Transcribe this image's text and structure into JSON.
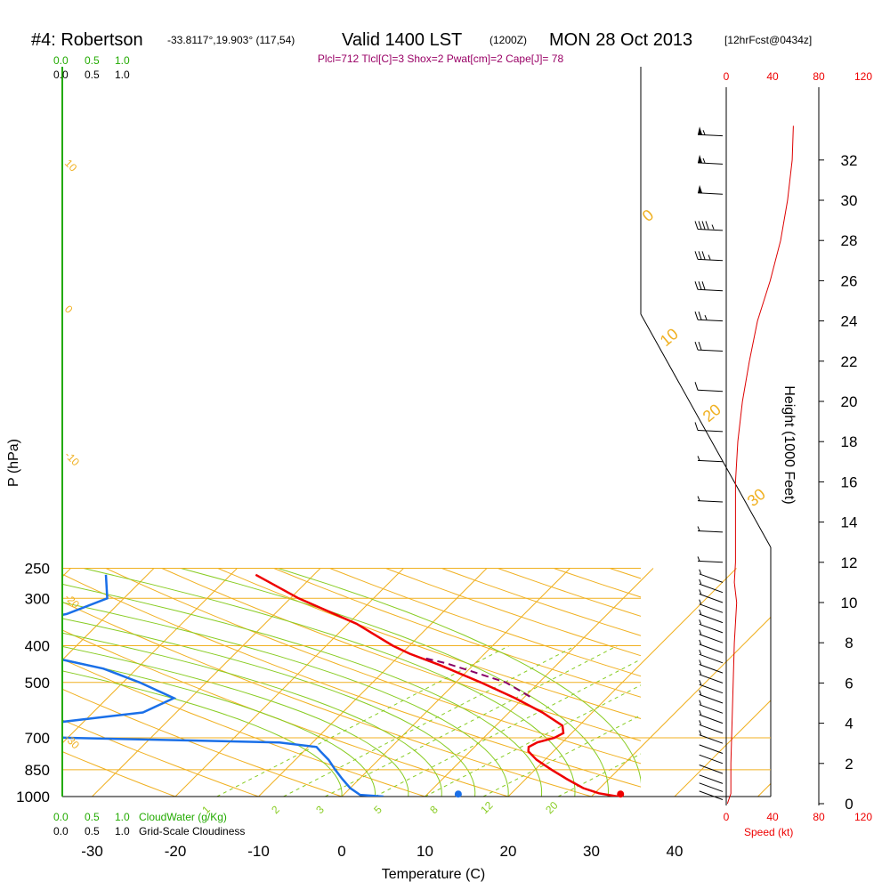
{
  "header": {
    "station": "#4: Robertson",
    "coords": "-33.8117°,19.903° (117,54)",
    "valid": "Valid 1400 LST",
    "utc": "(1200Z)",
    "date": "MON 28 Oct 2013",
    "forecast": "[12hrFcst@0434z]"
  },
  "info_line": "Plcl=712 Tlcl[C]=3 Shox=2 Pwat[cm]=2 Cape[J]= 78",
  "scales": {
    "cloudwater_ticks": [
      "0.0",
      "0.5",
      "1.0"
    ],
    "cloudiness_ticks": [
      "0.0",
      "0.5",
      "1.0"
    ],
    "cloudwater_label": "CloudWater (g/Kg)",
    "cloudiness_label": "Grid-Scale Cloudiness",
    "speed_ticks": [
      "0",
      "40",
      "80",
      "120"
    ],
    "speed_label": "Speed (kt)"
  },
  "colors": {
    "temperature": "#ee0000",
    "dewpoint": "#1a6fe8",
    "parcel": "#880066",
    "isotherm": "#f0b020",
    "mixing_ratio": "#88cc22",
    "wind_speed": "#dd0000",
    "cloud": "#22aa00"
  },
  "chart_data": {
    "type": "skew-t",
    "xlabel": "Temperature (C)",
    "ylabel": "P (hPa)",
    "y2label": "Height (1000 Feet)",
    "x_ticks": [
      -30,
      -20,
      -10,
      0,
      10,
      20,
      30,
      40
    ],
    "pressure_ticks": [
      250,
      300,
      400,
      500,
      700,
      850,
      1000
    ],
    "height_ticks": [
      0,
      2,
      4,
      6,
      8,
      10,
      12,
      14,
      16,
      18,
      20,
      22,
      24,
      26,
      28,
      30,
      32
    ],
    "skewed_isotherm_labels": [
      {
        "label": "10",
        "t": -10
      },
      {
        "label": "0",
        "t": 0
      },
      {
        "label": "-10",
        "t": 10
      },
      {
        "label": "-20",
        "t": 20
      },
      {
        "label": "-30",
        "t": 30
      }
    ],
    "right_isotherm_labels": [
      {
        "label": "0",
        "t": 0
      },
      {
        "label": "10",
        "t": 10
      },
      {
        "label": "20",
        "t": 20
      },
      {
        "label": "30",
        "t": 30
      }
    ],
    "mixing_ratio_labels": [
      "1",
      "2",
      "3",
      "5",
      "8",
      "12",
      "20"
    ],
    "temperature_profile": [
      {
        "p": 1000,
        "t": 33.2
      },
      {
        "p": 980,
        "t": 30.5
      },
      {
        "p": 950,
        "t": 28
      },
      {
        "p": 900,
        "t": 25
      },
      {
        "p": 850,
        "t": 22
      },
      {
        "p": 800,
        "t": 19
      },
      {
        "p": 760,
        "t": 17
      },
      {
        "p": 740,
        "t": 16.5
      },
      {
        "p": 720,
        "t": 17
      },
      {
        "p": 700,
        "t": 18.5
      },
      {
        "p": 680,
        "t": 19
      },
      {
        "p": 650,
        "t": 18
      },
      {
        "p": 600,
        "t": 14
      },
      {
        "p": 550,
        "t": 9
      },
      {
        "p": 500,
        "t": 3
      },
      {
        "p": 450,
        "t": -4
      },
      {
        "p": 420,
        "t": -9
      },
      {
        "p": 400,
        "t": -12
      },
      {
        "p": 350,
        "t": -19
      },
      {
        "p": 300,
        "t": -29
      },
      {
        "p": 260,
        "t": -37
      }
    ],
    "dewpoint_profile": [
      {
        "p": 1000,
        "t": 5
      },
      {
        "p": 990,
        "t": 2
      },
      {
        "p": 950,
        "t": 0
      },
      {
        "p": 900,
        "t": -2
      },
      {
        "p": 850,
        "t": -4
      },
      {
        "p": 800,
        "t": -6
      },
      {
        "p": 760,
        "t": -8
      },
      {
        "p": 740,
        "t": -9
      },
      {
        "p": 720,
        "t": -14
      },
      {
        "p": 700,
        "t": -40
      },
      {
        "p": 680,
        "t": -55
      },
      {
        "p": 650,
        "t": -46
      },
      {
        "p": 600,
        "t": -34
      },
      {
        "p": 550,
        "t": -32
      },
      {
        "p": 500,
        "t": -38
      },
      {
        "p": 460,
        "t": -44
      },
      {
        "p": 420,
        "t": -54
      },
      {
        "p": 400,
        "t": -60
      },
      {
        "p": 360,
        "t": -62
      },
      {
        "p": 330,
        "t": -55
      },
      {
        "p": 300,
        "t": -52
      },
      {
        "p": 260,
        "t": -55
      }
    ],
    "parcel_profile": [
      {
        "p": 545,
        "t": 10.6
      },
      {
        "p": 500,
        "t": 6
      },
      {
        "p": 470,
        "t": 1
      },
      {
        "p": 445,
        "t": -3.5
      },
      {
        "p": 430,
        "t": -7
      }
    ],
    "surface_temperature": 33.5,
    "surface_dewpoint": 14,
    "wind_speed_profile": [
      {
        "h": 0,
        "kt": 1
      },
      {
        "h": 0.5,
        "kt": 4
      },
      {
        "h": 2,
        "kt": 4
      },
      {
        "h": 4,
        "kt": 5
      },
      {
        "h": 6,
        "kt": 6
      },
      {
        "h": 8,
        "kt": 7
      },
      {
        "h": 10,
        "kt": 9
      },
      {
        "h": 11,
        "kt": 7
      },
      {
        "h": 12,
        "kt": 8
      },
      {
        "h": 14,
        "kt": 8
      },
      {
        "h": 16,
        "kt": 8
      },
      {
        "h": 18,
        "kt": 10
      },
      {
        "h": 20,
        "kt": 14
      },
      {
        "h": 22,
        "kt": 20
      },
      {
        "h": 24,
        "kt": 27
      },
      {
        "h": 26,
        "kt": 38
      },
      {
        "h": 28,
        "kt": 47
      },
      {
        "h": 30,
        "kt": 53
      },
      {
        "h": 32,
        "kt": 57
      },
      {
        "h": 33.7,
        "kt": 58
      }
    ],
    "wind_barbs": [
      {
        "h": 0.2,
        "kt": 1
      },
      {
        "h": 0.6,
        "kt": 3
      },
      {
        "h": 1.0,
        "kt": 4
      },
      {
        "h": 1.5,
        "kt": 4
      },
      {
        "h": 2.0,
        "kt": 4
      },
      {
        "h": 2.5,
        "kt": 4
      },
      {
        "h": 3.0,
        "kt": 5
      },
      {
        "h": 3.5,
        "kt": 5
      },
      {
        "h": 4.0,
        "kt": 5
      },
      {
        "h": 4.5,
        "kt": 5
      },
      {
        "h": 5.0,
        "kt": 6
      },
      {
        "h": 5.5,
        "kt": 6
      },
      {
        "h": 6.0,
        "kt": 6
      },
      {
        "h": 6.5,
        "kt": 6
      },
      {
        "h": 7.0,
        "kt": 7
      },
      {
        "h": 7.5,
        "kt": 7
      },
      {
        "h": 8.0,
        "kt": 7
      },
      {
        "h": 8.5,
        "kt": 8
      },
      {
        "h": 9.0,
        "kt": 8
      },
      {
        "h": 9.5,
        "kt": 9
      },
      {
        "h": 10.0,
        "kt": 9
      },
      {
        "h": 10.5,
        "kt": 8
      },
      {
        "h": 11.0,
        "kt": 7
      },
      {
        "h": 12.0,
        "kt": 8
      },
      {
        "h": 13.5,
        "kt": 8
      },
      {
        "h": 15.0,
        "kt": 8
      },
      {
        "h": 17.0,
        "kt": 9
      },
      {
        "h": 18.5,
        "kt": 10
      },
      {
        "h": 20.5,
        "kt": 14
      },
      {
        "h": 22.5,
        "kt": 20
      },
      {
        "h": 24.0,
        "kt": 25
      },
      {
        "h": 25.5,
        "kt": 30
      },
      {
        "h": 27.0,
        "kt": 38
      },
      {
        "h": 28.5,
        "kt": 45
      },
      {
        "h": 30.3,
        "kt": 50
      },
      {
        "h": 31.8,
        "kt": 55
      },
      {
        "h": 33.2,
        "kt": 58
      }
    ]
  }
}
